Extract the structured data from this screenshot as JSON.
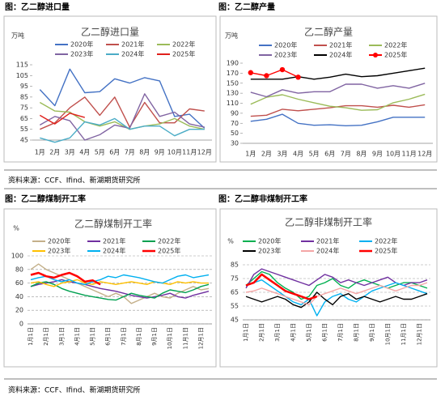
{
  "figures": [
    {
      "caption": "图：乙二醇进口量"
    },
    {
      "caption": "图：乙二醇产量"
    },
    {
      "caption": "图：乙二醇煤制开工率"
    },
    {
      "caption": "图：乙二醇非煤制开工率"
    }
  ],
  "sources": [
    "资料来源：CCF、Ifind、新湖期货研究所",
    "资料来源：CCF、Ifind、新湖期货研究所"
  ],
  "chart_data": [
    {
      "type": "line",
      "title": "乙二醇进口量",
      "unit": "万吨",
      "grid": false,
      "categories": [
        "1月",
        "2月",
        "3月",
        "4月",
        "5月",
        "6月",
        "7月",
        "8月",
        "9月",
        "10月",
        "11月",
        "12月"
      ],
      "ylim": [
        45,
        115
      ],
      "yticks": [
        45,
        55,
        65,
        75,
        85,
        95,
        105,
        115
      ],
      "series": [
        {
          "name": "2020年",
          "color": "#4472c4",
          "values": [
            92,
            77,
            111,
            89,
            90,
            102,
            98,
            103,
            100,
            67,
            69,
            56
          ]
        },
        {
          "name": "2021年",
          "color": "#c0504d",
          "values": [
            55,
            61,
            75,
            85,
            68,
            85,
            57,
            80,
            61,
            61,
            74,
            72
          ]
        },
        {
          "name": "2022年",
          "color": "#9bbb59",
          "values": [
            80,
            72,
            71,
            62,
            58,
            62,
            55,
            58,
            60,
            65,
            58,
            55
          ]
        },
        {
          "name": "2023年",
          "color": "#8064a2",
          "values": [
            59,
            67,
            63,
            45,
            50,
            59,
            56,
            88,
            67,
            71,
            60,
            57
          ]
        },
        {
          "name": "2024年",
          "color": "#4bacc6",
          "values": [
            47,
            43,
            47,
            62,
            59,
            65,
            55,
            58,
            58,
            49,
            55,
            55
          ]
        },
        {
          "name": "2025年",
          "color": "#e0201b",
          "values": [
            68,
            60,
            70,
            66,
            null,
            null,
            null,
            null,
            null,
            null,
            null,
            null
          ]
        }
      ]
    },
    {
      "type": "line",
      "title": "乙二醇产量",
      "unit": "万吨",
      "grid": false,
      "categories": [
        "1月",
        "2月",
        "3月",
        "4月",
        "5月",
        "6月",
        "7月",
        "8月",
        "9月",
        "10月",
        "11月",
        "12月"
      ],
      "ylim": [
        30,
        190
      ],
      "yticks": [
        30,
        50,
        70,
        90,
        110,
        130,
        150,
        170,
        190
      ],
      "series": [
        {
          "name": "2020年",
          "color": "#4472c4",
          "values": [
            74,
            78,
            88,
            70,
            66,
            67,
            65,
            66,
            73,
            82,
            82,
            82
          ]
        },
        {
          "name": "2021年",
          "color": "#c0504d",
          "values": [
            84,
            86,
            98,
            95,
            98,
            101,
            105,
            105,
            102,
            106,
            102,
            107
          ]
        },
        {
          "name": "2022年",
          "color": "#9bbb59",
          "values": [
            108,
            122,
            127,
            118,
            111,
            104,
            101,
            96,
            97,
            111,
            118,
            128
          ]
        },
        {
          "name": "2023年",
          "color": "#8064a2",
          "values": [
            132,
            123,
            137,
            130,
            133,
            133,
            148,
            148,
            140,
            145,
            140,
            150
          ]
        },
        {
          "name": "2024年",
          "color": "#000000",
          "values": [
            158,
            158,
            158,
            163,
            158,
            162,
            168,
            163,
            165,
            170,
            175,
            180
          ]
        },
        {
          "name": "2025年",
          "color": "#ff0000",
          "marker": true,
          "values": [
            171,
            165,
            177,
            162,
            null,
            null,
            null,
            null,
            null,
            null,
            null,
            null
          ]
        }
      ]
    },
    {
      "type": "line",
      "title": "乙二醇煤制开工率",
      "unit": "%",
      "grid": true,
      "categories": [
        "1月1日",
        null,
        "2月1日",
        null,
        "3月1日",
        null,
        "4月1日",
        null,
        "5月1日",
        null,
        "6月1日",
        null,
        "7月1日",
        null,
        "8月1日",
        null,
        "9月1日",
        null,
        "10月1日",
        null,
        "11月1日",
        null,
        "12月1日",
        null
      ],
      "ylim": [
        0,
        100
      ],
      "yticks": [
        0,
        20,
        40,
        60,
        80,
        100
      ],
      "series": [
        {
          "name": "2020年",
          "color": "#c4b08a",
          "values": [
            80,
            88,
            80,
            75,
            70,
            65,
            60,
            55,
            50,
            45,
            40,
            45,
            40,
            30,
            35,
            40,
            45,
            40,
            38,
            45,
            50,
            55,
            50,
            52
          ]
        },
        {
          "name": "2021年",
          "color": "#7030a0",
          "values": [
            55,
            58,
            60,
            62,
            65,
            62,
            60,
            58,
            55,
            52,
            50,
            48,
            45,
            42,
            40,
            38,
            40,
            42,
            45,
            40,
            38,
            42,
            45,
            48
          ]
        },
        {
          "name": "2022年",
          "color": "#00a050",
          "values": [
            55,
            60,
            62,
            58,
            52,
            48,
            45,
            42,
            40,
            38,
            36,
            35,
            40,
            45,
            42,
            40,
            38,
            45,
            50,
            48,
            46,
            50,
            55,
            58
          ]
        },
        {
          "name": "2023年",
          "color": "#ffc000",
          "values": [
            60,
            62,
            58,
            55,
            60,
            62,
            65,
            60,
            58,
            62,
            60,
            58,
            60,
            62,
            60,
            58,
            62,
            60,
            58,
            62,
            60,
            62,
            60,
            60
          ]
        },
        {
          "name": "2024年",
          "color": "#00b0f0",
          "values": [
            65,
            68,
            70,
            65,
            62,
            65,
            60,
            58,
            62,
            65,
            70,
            68,
            72,
            70,
            68,
            65,
            62,
            60,
            65,
            70,
            72,
            68,
            70,
            72
          ]
        },
        {
          "name": "2025年",
          "color": "#ff0000",
          "width": 2.5,
          "values": [
            72,
            75,
            70,
            68,
            72,
            75,
            70,
            62,
            64,
            58,
            null,
            null,
            null,
            null,
            null,
            null,
            null,
            null,
            null,
            null,
            null,
            null,
            null,
            null
          ]
        }
      ]
    },
    {
      "type": "line",
      "title": "乙二醇非煤制开工率",
      "unit": "%",
      "grid": true,
      "categories": [
        "1月1日",
        null,
        "2月1日",
        null,
        "3月1日",
        null,
        "4月1日",
        null,
        "5月1日",
        null,
        "6月1日",
        null,
        "7月1日",
        null,
        "8月1日",
        null,
        "9月1日",
        null,
        "10月1日",
        null,
        "11月1日",
        null,
        "12月1日",
        null
      ],
      "ylim": [
        45,
        85
      ],
      "yticks": [
        45,
        55,
        65,
        75,
        85
      ],
      "series": [
        {
          "name": "2020年",
          "color": "#00b050",
          "values": [
            70,
            75,
            80,
            78,
            72,
            68,
            65,
            60,
            62,
            70,
            72,
            75,
            70,
            68,
            72,
            74,
            72,
            70,
            68,
            70,
            72,
            72,
            70,
            68
          ]
        },
        {
          "name": "2021年",
          "color": "#7030a0",
          "values": [
            68,
            78,
            82,
            80,
            78,
            76,
            74,
            72,
            70,
            74,
            78,
            76,
            72,
            74,
            72,
            70,
            72,
            74,
            76,
            72,
            70,
            72,
            72,
            74
          ]
        },
        {
          "name": "2022年",
          "color": "#00b0f0",
          "values": [
            70,
            72,
            74,
            70,
            66,
            62,
            58,
            56,
            60,
            48,
            58,
            62,
            64,
            60,
            58,
            62,
            66,
            68,
            70,
            72,
            70,
            68,
            66,
            64
          ]
        },
        {
          "name": "2023年",
          "color": "#000000",
          "values": [
            62,
            60,
            58,
            60,
            62,
            60,
            56,
            54,
            58,
            65,
            60,
            56,
            62,
            64,
            60,
            62,
            60,
            58,
            60,
            62,
            60,
            60,
            62,
            64
          ]
        },
        {
          "name": "2024年",
          "color": "#f4a6a6",
          "values": [
            65,
            66,
            68,
            66,
            64,
            62,
            60,
            58,
            56,
            62,
            64,
            66,
            68,
            66,
            64,
            66,
            68,
            70,
            68,
            66,
            68,
            70,
            70,
            72
          ]
        },
        {
          "name": "2025年",
          "color": "#ff0000",
          "width": 2.5,
          "values": [
            70,
            72,
            78,
            74,
            70,
            66,
            64,
            62,
            60,
            62,
            null,
            null,
            null,
            null,
            null,
            null,
            null,
            null,
            null,
            null,
            null,
            null,
            null,
            null
          ]
        }
      ]
    }
  ]
}
